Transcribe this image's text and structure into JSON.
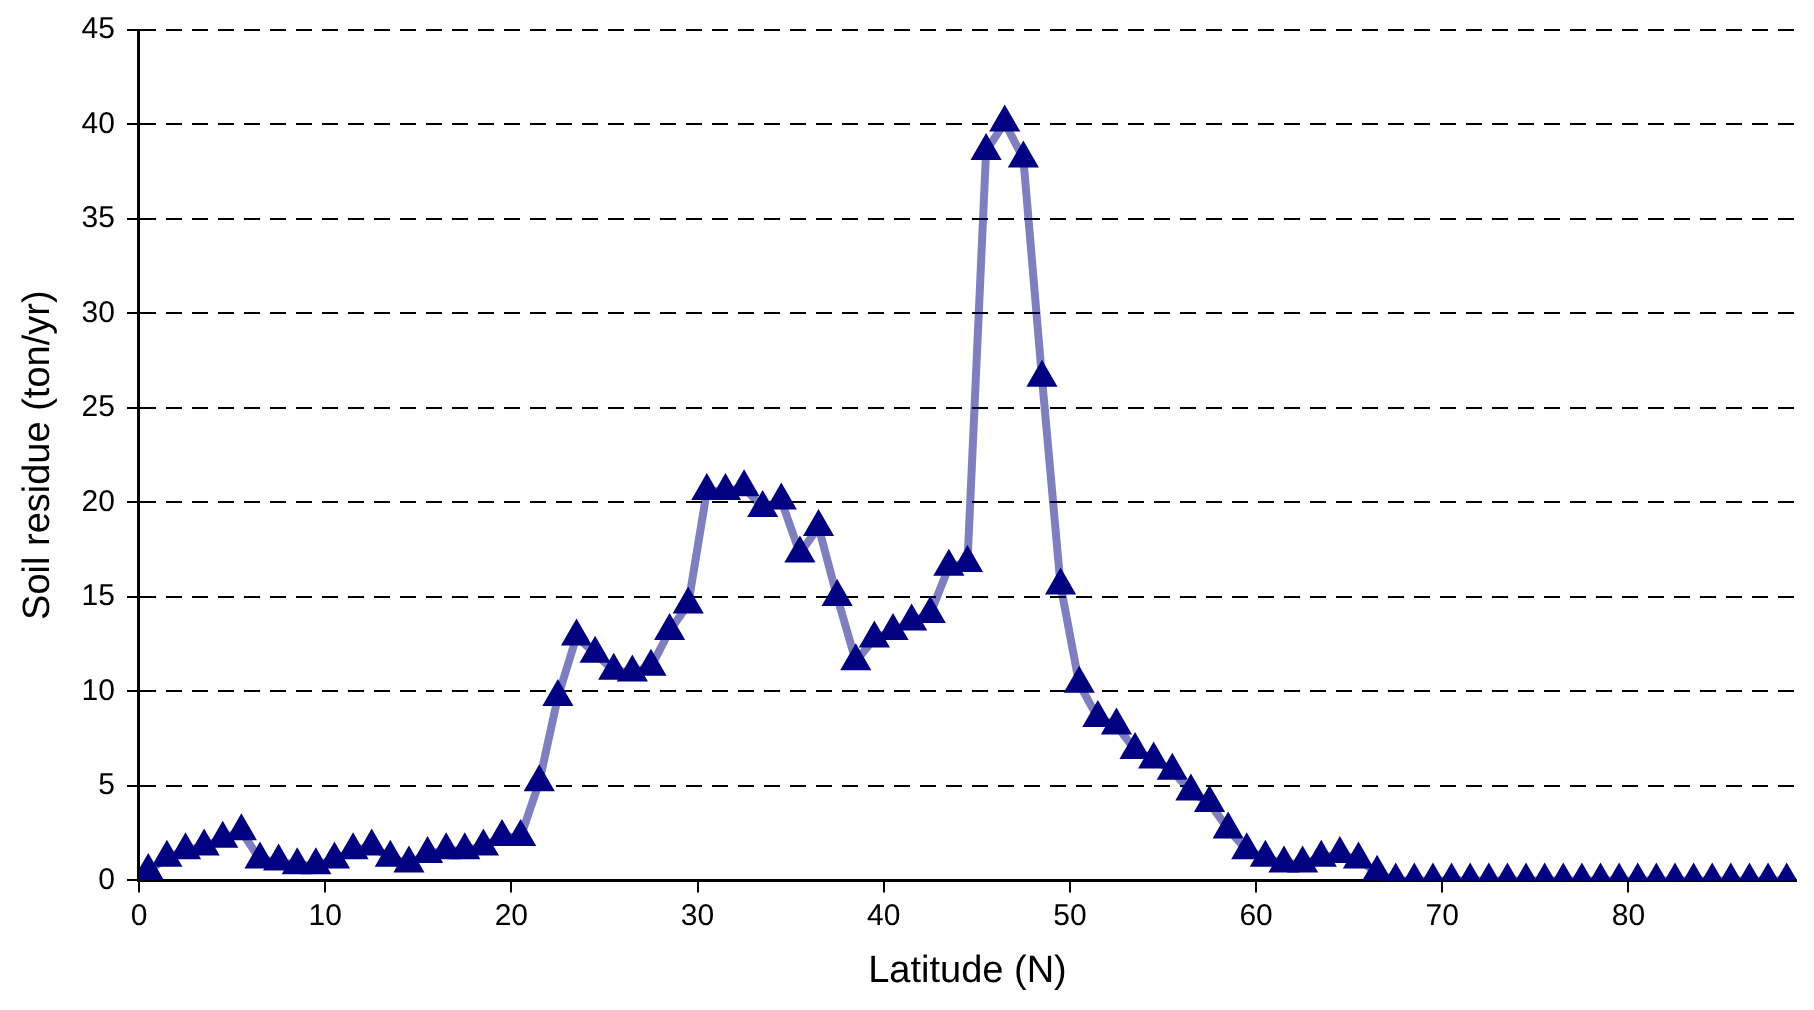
{
  "chart_data": {
    "type": "line",
    "xlabel": "Latitude (N)",
    "ylabel": "Soil residue (ton/yr)",
    "xlim": [
      0,
      89
    ],
    "xticks": [
      0,
      10,
      20,
      30,
      40,
      50,
      60,
      70,
      80
    ],
    "ylim": [
      0,
      45
    ],
    "yticks": [
      0,
      5,
      10,
      15,
      20,
      25,
      30,
      35,
      40,
      45
    ],
    "grid": "y",
    "legend": false,
    "marker": "triangle",
    "line_style": "solid",
    "x": [
      0.5,
      1.5,
      2.5,
      3.5,
      4.5,
      5.5,
      6.5,
      7.5,
      8.5,
      9.5,
      10.5,
      11.5,
      12.5,
      13.5,
      14.5,
      15.5,
      16.5,
      17.5,
      18.5,
      19.5,
      20.5,
      21.5,
      22.5,
      23.5,
      24.5,
      25.5,
      26.5,
      27.5,
      28.5,
      29.5,
      30.5,
      31.5,
      32.5,
      33.5,
      34.5,
      35.5,
      36.5,
      37.5,
      38.5,
      39.5,
      40.5,
      41.5,
      42.5,
      43.5,
      44.5,
      45.5,
      46.5,
      47.5,
      48.5,
      49.5,
      50.5,
      51.5,
      52.5,
      53.5,
      54.5,
      55.5,
      56.5,
      57.5,
      58.5,
      59.5,
      60.5,
      61.5,
      62.5,
      63.5,
      64.5,
      65.5,
      66.5,
      67.5,
      68.5,
      69.5,
      70.5,
      71.5,
      72.5,
      73.5,
      74.5,
      75.5,
      76.5,
      77.5,
      78.5,
      79.5,
      80.5,
      81.5,
      82.5,
      83.5,
      84.5,
      85.5,
      86.5,
      87.5,
      88.5
    ],
    "series": [
      {
        "color": "#000080",
        "values": [
          0.5,
          1.2,
          1.6,
          1.8,
          2.2,
          2.6,
          1.1,
          1.0,
          0.8,
          0.8,
          1.1,
          1.6,
          1.8,
          1.2,
          0.9,
          1.4,
          1.6,
          1.6,
          1.8,
          2.3,
          2.3,
          5.2,
          9.7,
          12.9,
          12.0,
          11.1,
          11.0,
          11.3,
          13.2,
          14.6,
          20.6,
          20.6,
          20.8,
          19.7,
          20.1,
          17.3,
          18.7,
          15.0,
          11.6,
          12.8,
          13.2,
          13.7,
          14.1,
          16.6,
          16.8,
          38.6,
          40.1,
          38.2,
          26.6,
          15.6,
          10.4,
          8.6,
          8.2,
          6.9,
          6.4,
          5.8,
          4.7,
          4.1,
          2.7,
          1.6,
          1.2,
          0.9,
          0.9,
          1.2,
          1.4,
          1.1,
          0.4,
          0,
          0,
          0,
          0,
          0,
          0,
          0,
          0,
          0,
          0,
          0,
          0,
          0,
          0,
          0,
          0,
          0,
          0,
          0,
          0,
          0,
          0
        ]
      }
    ]
  }
}
